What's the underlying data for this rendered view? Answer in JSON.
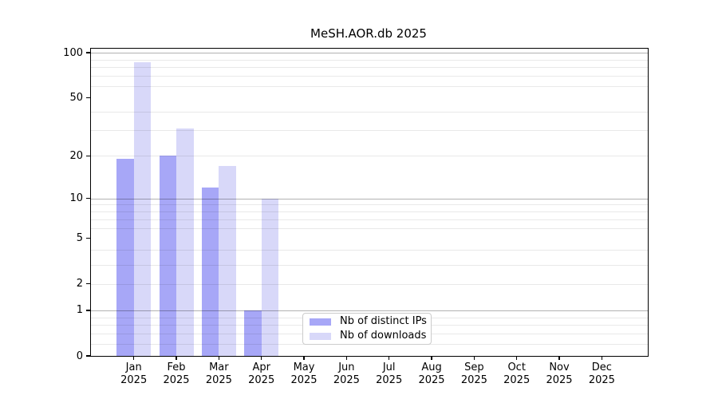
{
  "chart_data": {
    "type": "bar",
    "title": "MeSH.AOR.db 2025",
    "categories": [
      "Jan",
      "Feb",
      "Mar",
      "Apr",
      "May",
      "Jun",
      "Jul",
      "Aug",
      "Sep",
      "Oct",
      "Nov",
      "Dec"
    ],
    "x_tick_second_line": "2025",
    "series": [
      {
        "name": "Nb of distinct IPs",
        "color": "#a7a7f7",
        "values": [
          19,
          20,
          12,
          1,
          0,
          0,
          0,
          0,
          0,
          0,
          0,
          0
        ]
      },
      {
        "name": "Nb of downloads",
        "color": "#d8d8f9",
        "values": [
          86,
          31,
          17,
          10,
          0,
          0,
          0,
          0,
          0,
          0,
          0,
          0
        ]
      }
    ],
    "yscale": "log10(value+1)",
    "ylim": [
      0,
      100
    ],
    "yticks": [
      0,
      1,
      2,
      5,
      10,
      20,
      50,
      100
    ],
    "ytick_labels": [
      "0",
      "1",
      "2",
      "5",
      "10",
      "20",
      "50",
      "100"
    ],
    "major_gridlines": [
      1,
      10,
      100
    ],
    "minor_gridlines": [
      0.2,
      0.4,
      0.6,
      0.8,
      2,
      3,
      4,
      6,
      7,
      8,
      9,
      20,
      30,
      40,
      60,
      70,
      80,
      90
    ],
    "grid": true,
    "legend_position": "lower center",
    "bar_group": "paired, distinct IPs left of month tick, downloads right"
  },
  "colors": {
    "background": "#ffffff",
    "spine": "#000000",
    "distinct_ips_bar": "#a7a7f7",
    "downloads_bar": "#d8d8f9",
    "legend_border": "#cccccc",
    "text": "#000000"
  }
}
